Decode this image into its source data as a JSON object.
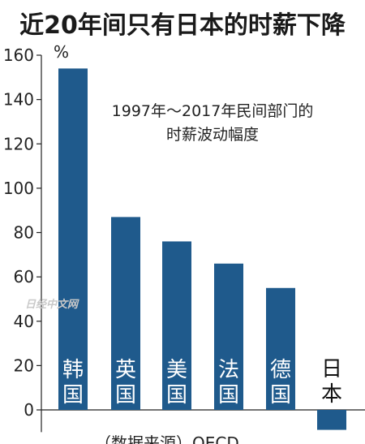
{
  "chart_data": {
    "type": "bar",
    "title": "近20年间只有日本的时薪下降",
    "annotation_lines": [
      "1997年～2017年民间部门的",
      "时薪波动幅度"
    ],
    "y_unit": "%",
    "source": "（数据来源）OECD",
    "categories": [
      "韩国",
      "英国",
      "美国",
      "法国",
      "德国",
      "日本"
    ],
    "values": [
      154,
      87,
      76,
      66,
      55,
      -9
    ],
    "ylim": [
      -10,
      160
    ],
    "yticks": [
      0,
      20,
      40,
      60,
      80,
      100,
      120,
      140,
      160
    ],
    "grid": false,
    "bar_color": "#1f5a8c"
  },
  "watermark": "日经中文网"
}
